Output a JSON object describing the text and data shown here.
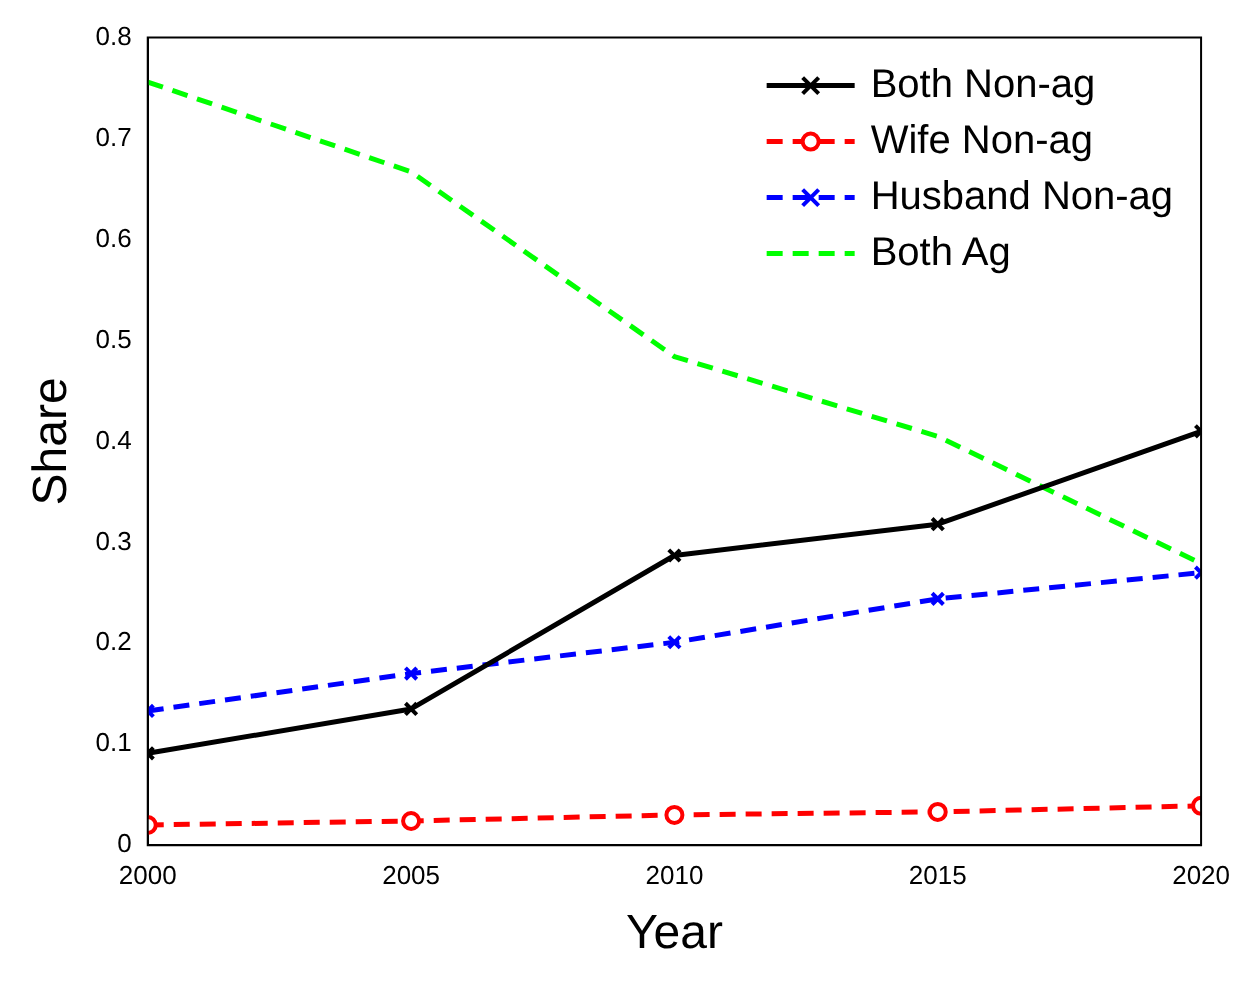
{
  "chart_data": {
    "type": "line",
    "xlabel": "Year",
    "ylabel": "Share",
    "x": [
      2000,
      2005,
      2010,
      2015,
      2020
    ],
    "series": [
      {
        "name": "Both Non-ag",
        "color": "#000000",
        "values": [
          0.091,
          0.135,
          0.287,
          0.318,
          0.41
        ],
        "marker": "cross",
        "line_style": "solid"
      },
      {
        "name": "Wife Non-ag",
        "color": "#ff0000",
        "values": [
          0.02,
          0.024,
          0.03,
          0.033,
          0.039
        ],
        "marker": "circle",
        "line_style": "dashed"
      },
      {
        "name": "Husband Non-ag",
        "color": "#0000ff",
        "values": [
          0.133,
          0.17,
          0.201,
          0.244,
          0.27
        ],
        "marker": "cross",
        "line_style": "dashed"
      },
      {
        "name": "Both Ag",
        "color": "#00ff00",
        "values": [
          0.756,
          0.667,
          0.484,
          0.405,
          0.279
        ],
        "marker": "none",
        "line_style": "dashed"
      }
    ],
    "xlim": [
      2000,
      2020
    ],
    "xticks": [
      2000,
      2005,
      2010,
      2015,
      2020
    ],
    "ylim": [
      0,
      0.8
    ],
    "yticks": [
      0,
      0.1,
      0.2,
      0.3,
      0.4,
      0.5,
      0.6,
      0.7,
      0.8
    ],
    "grid": false,
    "legend": "top right"
  }
}
